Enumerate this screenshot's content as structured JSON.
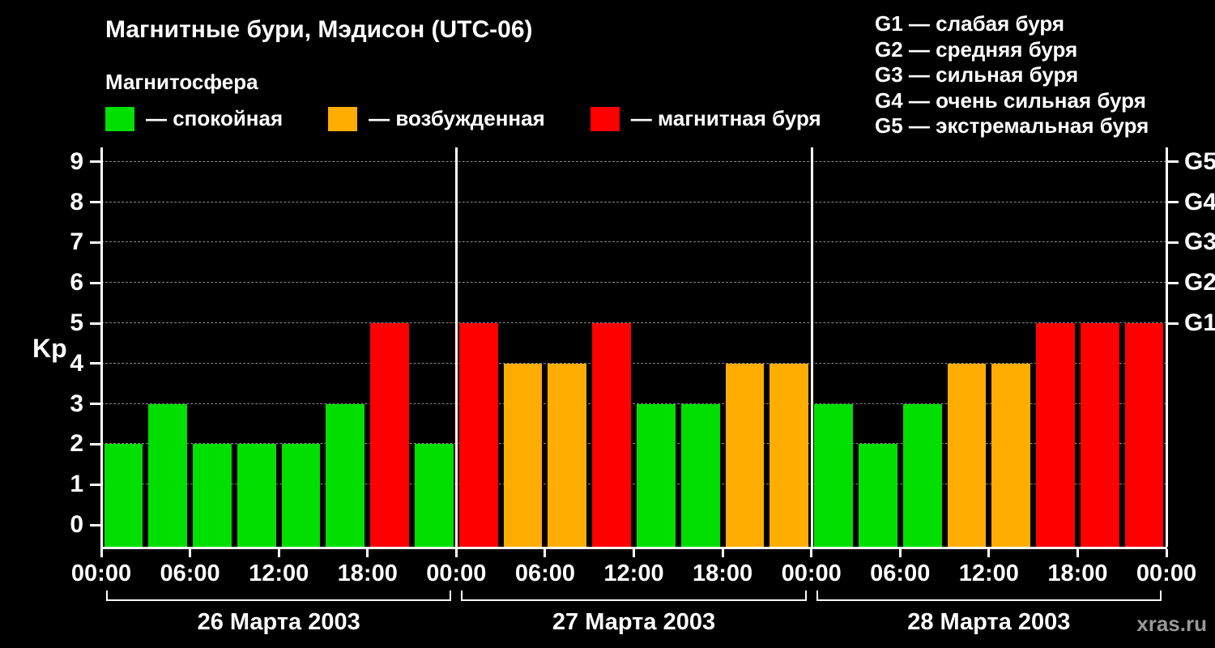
{
  "title": "Магнитные бури, Мэдисон (UTC-06)",
  "legend": {
    "heading": "Магнитосфера",
    "items": [
      {
        "name": "quiet",
        "label": "— спокойная",
        "color": "#00df00"
      },
      {
        "name": "active",
        "label": "— возбужденная",
        "color": "#ffad00"
      },
      {
        "name": "storm",
        "label": "— магнитная буря",
        "color": "#ff0000"
      }
    ]
  },
  "g_legend": [
    "G1 — слабая буря",
    "G2 — средняя буря",
    "G3 — сильная буря",
    "G4 — очень сильная буря",
    "G5 — экстремальная буря"
  ],
  "watermark": "xras.ru",
  "chart_data": {
    "type": "bar",
    "title": "Магнитные бури, Мэдисон (UTC-06)",
    "ylabel": "Kp",
    "ylim": [
      0,
      9
    ],
    "yticks": [
      0,
      1,
      2,
      3,
      4,
      5,
      6,
      7,
      8,
      9
    ],
    "right_axis": [
      {
        "label": "G1",
        "value": 5
      },
      {
        "label": "G2",
        "value": 6
      },
      {
        "label": "G3",
        "value": 7
      },
      {
        "label": "G4",
        "value": 8
      },
      {
        "label": "G5",
        "value": 9
      }
    ],
    "bar_interval_hours": 3,
    "x_tick_labels": [
      "00:00",
      "06:00",
      "12:00",
      "18:00",
      "00:00",
      "06:00",
      "12:00",
      "18:00",
      "00:00",
      "06:00",
      "12:00",
      "18:00",
      "00:00"
    ],
    "days": [
      {
        "date": "26 Марта 2003",
        "values": [
          2,
          3,
          2,
          2,
          2,
          3,
          5,
          2
        ]
      },
      {
        "date": "27 Марта 2003",
        "values": [
          5,
          4,
          4,
          5,
          3,
          3,
          4,
          4
        ]
      },
      {
        "date": "28 Марта 2003",
        "values": [
          3,
          2,
          3,
          4,
          4,
          5,
          5,
          5
        ]
      }
    ],
    "color_rules": {
      "quiet_max_kp": 3,
      "active_kp": 4,
      "storm_min_kp": 5
    },
    "colors": {
      "quiet": "#00df00",
      "active": "#ffad00",
      "storm": "#ff0000"
    },
    "grid": "dashed-horizontal",
    "legend_position": "top-left"
  }
}
